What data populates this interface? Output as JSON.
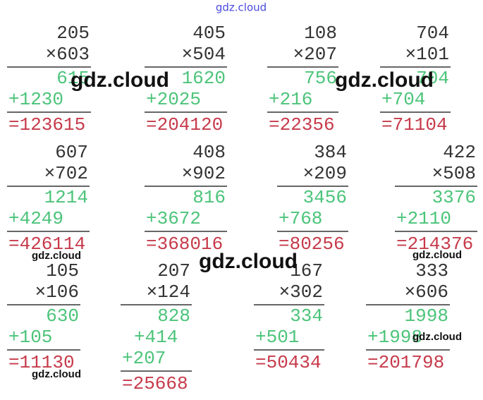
{
  "header": "gdz.cloud",
  "problems": [
    {
      "multiplicand": "205",
      "multiplier": "×603",
      "partials": [
        "615",
        "+1230"
      ],
      "result": "=123615"
    },
    {
      "multiplicand": "405",
      "multiplier": "×504",
      "partials": [
        "1620",
        "+2025"
      ],
      "result": "=204120"
    },
    {
      "multiplicand": "108",
      "multiplier": "×207",
      "partials": [
        "756",
        "+216"
      ],
      "result": "=22356"
    },
    {
      "multiplicand": "704",
      "multiplier": "×101",
      "partials": [
        "704",
        "+704"
      ],
      "result": "=71104"
    },
    {
      "multiplicand": "607",
      "multiplier": "×702",
      "partials": [
        "1214",
        "+4249"
      ],
      "result": "=426114"
    },
    {
      "multiplicand": "408",
      "multiplier": "×902",
      "partials": [
        "816",
        "+3672"
      ],
      "result": "=368016"
    },
    {
      "multiplicand": "384",
      "multiplier": "×209",
      "partials": [
        "3456",
        "+768"
      ],
      "result": "=80256"
    },
    {
      "multiplicand": "422",
      "multiplier": "×508",
      "partials": [
        "3376",
        "+2110"
      ],
      "result": "=214376"
    },
    {
      "multiplicand": "105",
      "multiplier": "×106",
      "partials": [
        "630",
        "+105"
      ],
      "result": "=11130"
    },
    {
      "multiplicand": "207",
      "multiplier": "×124",
      "partials": [
        "828",
        "+414",
        "+207"
      ],
      "result": "=25668"
    },
    {
      "multiplicand": "167",
      "multiplier": "×302",
      "partials": [
        "334",
        "+501"
      ],
      "result": "=50434"
    },
    {
      "multiplicand": "333",
      "multiplier": "×606",
      "partials": [
        "1998",
        "+1998"
      ],
      "result": "=201798"
    }
  ],
  "watermarks": [
    "gdz.cloud",
    "gdz.cloud",
    "gdz.cloud",
    "gdz.cloud",
    "gdz.cloud",
    "gdz.cloud",
    "gdz.cloud"
  ]
}
